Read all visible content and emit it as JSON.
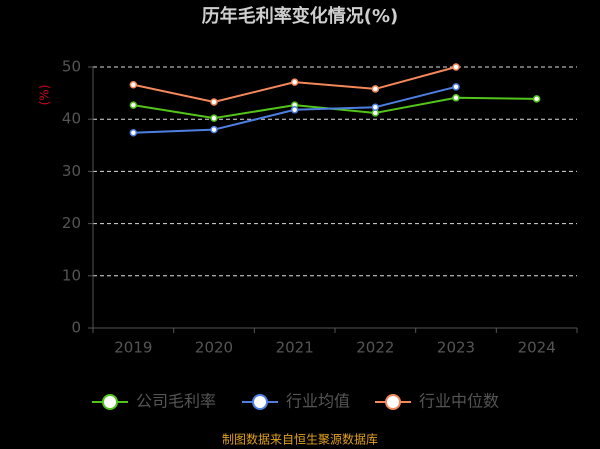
{
  "chart_data": {
    "type": "line",
    "title": "历年毛利率变化情况(%)",
    "y_label": "(%)",
    "categories": [
      "2019",
      "2020",
      "2021",
      "2022",
      "2023",
      "2024"
    ],
    "series": [
      {
        "name": "公司毛利率",
        "color": "#52c41a",
        "values": [
          42.7,
          40.2,
          42.7,
          41.2,
          44.1,
          43.9
        ]
      },
      {
        "name": "行业均值",
        "color": "#4e7fe0",
        "values": [
          37.4,
          38.0,
          41.8,
          42.3,
          46.2,
          null
        ]
      },
      {
        "name": "行业中位数",
        "color": "#f4885a",
        "values": [
          46.6,
          43.3,
          47.1,
          45.8,
          50.0,
          null
        ]
      }
    ],
    "ylim": [
      0,
      50
    ],
    "yticks": [
      0,
      10,
      20,
      30,
      40,
      50
    ],
    "grid": true,
    "source": "制图数据来自恒生聚源数据库"
  }
}
